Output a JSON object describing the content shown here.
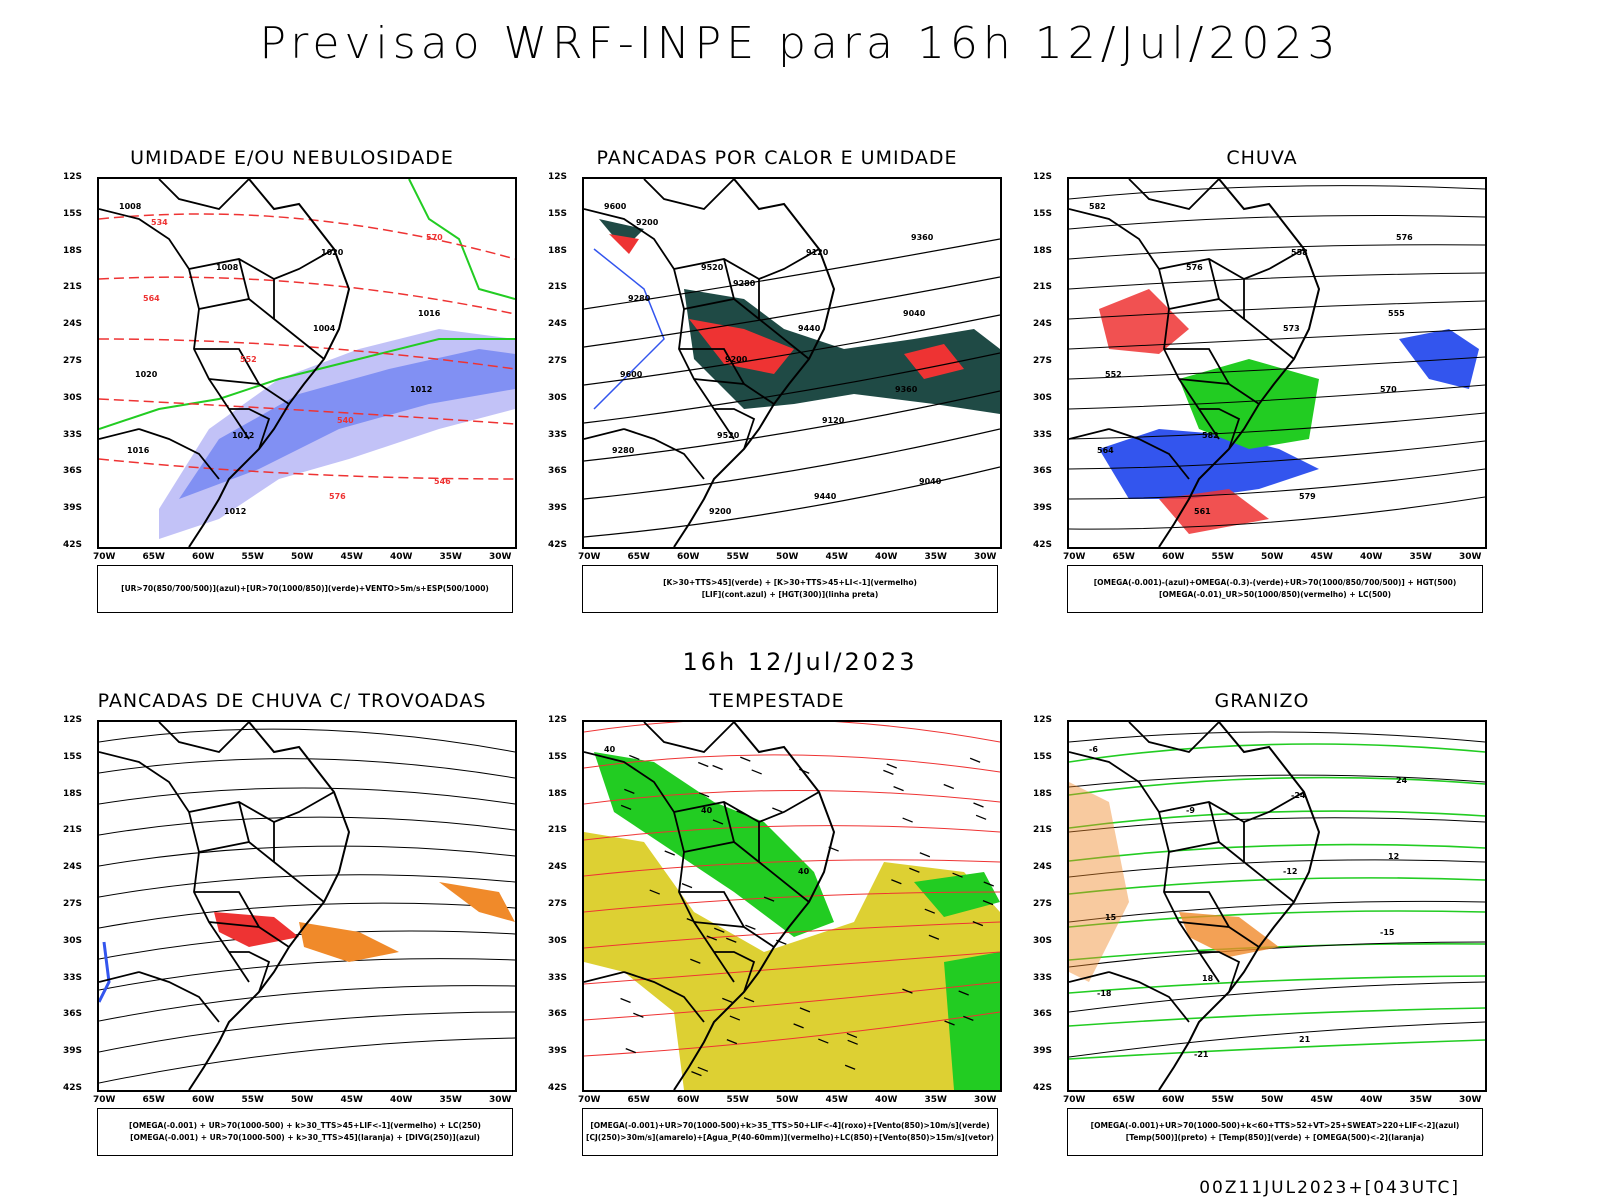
{
  "title": "Previsao WRF-INPE  para 16h 12/Jul/2023",
  "subtitle": "16h 12/Jul/2023",
  "footer": "00Z11JUL2023+[043UTC]",
  "colors": {
    "blue": "#3355ee",
    "green": "#22cc22",
    "red": "#ee3333",
    "orange": "#f08a2a",
    "yellow": "#ddd033",
    "darkteal": "#1f4a45",
    "lightviolet": "#b3b3f5"
  },
  "panels": [
    {
      "title": "UMIDADE E/OU NEBULOSIDADE",
      "legend": [
        "[UR>70(850/700/500)](azul)+[UR>70(1000/850)](verde)+VENTO>5m/s+ESP(500/1000)"
      ],
      "labels": [
        "1008",
        "1008",
        "1004",
        "1012",
        "1016",
        "1012",
        "1020",
        "1016",
        "1020",
        "1012",
        "576",
        "570",
        "564",
        "552",
        "540",
        "546",
        "534"
      ]
    },
    {
      "title": "PANCADAS POR CALOR E UMIDADE",
      "legend": [
        "[K>30+TTS>45](verde) + [K>30+TTS>45+LI<-1](vermelho)",
        "[LIF](cont.azul) + [HGT(300)](linha preta)"
      ],
      "labels": [
        "9600",
        "9520",
        "9440",
        "9360",
        "9280",
        "9200",
        "9120",
        "9040",
        "9600",
        "9520",
        "9440",
        "9360",
        "9280",
        "9200",
        "9120",
        "9040",
        "9200",
        "9280"
      ]
    },
    {
      "title": "CHUVA",
      "legend": [
        "[OMEGA(-0.001)-(azul)+OMEGA(-0.3)-(verde)+UR>70(1000/850/700/500)] + HGT(500)",
        "[OMEGA(-0.01)_UR>50(1000/850)(vermelho) + LC(500)"
      ],
      "labels": [
        "582",
        "576",
        "573",
        "570",
        "564",
        "561",
        "558",
        "555",
        "552",
        "582",
        "579",
        "576"
      ]
    },
    {
      "title": "PANCADAS DE CHUVA C/ TROVOADAS",
      "legend": [
        "[OMEGA(-0.001) + UR>70(1000-500) + k>30_TTS>45+LIF<-1](vermelho) + LC(250)",
        "[OMEGA(-0.001) + UR>70(1000-500) + k>30_TTS>45](laranja) + [DIVG(250)](azul)"
      ],
      "labels": []
    },
    {
      "title": "TEMPESTADE",
      "legend": [
        "[OMEGA(-0.001)+UR>70(1000-500)+k>35_TTS>50+LIF<-4](roxo)+[Vento(850)>10m/s](verde)",
        "[CJ(250)>30m/s](amarelo)+[Agua_P(40-60mm)](vermelho)+LC(850)+[Vento(850)>15m/s](vetor)"
      ],
      "labels": [
        "40",
        "40",
        "40"
      ]
    },
    {
      "title": "GRANIZO",
      "legend": [
        "[OMEGA(-0.001)+UR>70(1000-500)+k<60+TTS>52+VT>25+SWEAT>220+LIF<-2](azul)",
        "[Temp(500)](preto) + [Temp(850)](verde) + [OMEGA(500)<-2](laranja)"
      ],
      "labels": [
        "-6",
        "-9",
        "-12",
        "-15",
        "-18",
        "-21",
        "-24",
        "12",
        "15",
        "18",
        "21",
        "24"
      ]
    }
  ],
  "axes": {
    "lat_ticks": [
      "12S",
      "15S",
      "18S",
      "21S",
      "24S",
      "27S",
      "30S",
      "33S",
      "36S",
      "39S",
      "42S"
    ],
    "lon_ticks": [
      "70W",
      "65W",
      "60W",
      "55W",
      "50W",
      "45W",
      "40W",
      "35W",
      "30W"
    ]
  }
}
